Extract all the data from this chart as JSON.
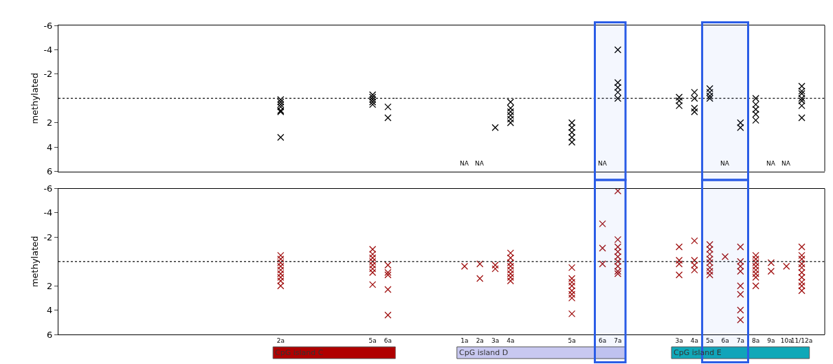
{
  "chart_data": [
    {
      "type": "scatter",
      "ylabel": "methylated",
      "ylim": [
        6,
        -6
      ],
      "yticks": [
        -6,
        -4,
        -2,
        2,
        4,
        6
      ],
      "marker": "cross",
      "tick_labels": "y",
      "categories": [
        null,
        null,
        null,
        null,
        null,
        null,
        null,
        null,
        null,
        null,
        null,
        null,
        null,
        null,
        "2a",
        null,
        null,
        null,
        null,
        null,
        "5a",
        "6a"
      ],
      "series": [
        {
          "color": "#000000",
          "x": [
            "2a",
            "2a",
            "2a",
            "2a",
            "2a",
            "2a",
            "2a",
            "5a",
            "5a",
            "5a",
            "5a",
            "5a",
            "6a",
            "6a"
          ],
          "values": [
            0.1,
            0.3,
            0.5,
            0.7,
            1.0,
            1.1,
            3.2,
            -0.3,
            -0.1,
            0.1,
            0.3,
            0.5,
            0.7,
            1.6
          ]
        }
      ],
      "ref_lines": [
        {
          "axis": "y",
          "value": 0,
          "color": "#333333",
          "line_style": "dotted"
        }
      ]
    },
    {
      "type": "scatter",
      "ylim": [
        6,
        -6
      ],
      "yticks": [
        -6,
        -4,
        -2,
        2,
        4,
        6
      ],
      "marker": "cross",
      "tick_labels": false,
      "categories": [
        null,
        null,
        null,
        null,
        "1a",
        "2a",
        "3a",
        "4a",
        null,
        null,
        null,
        "5a",
        null,
        "6a",
        "7a",
        null
      ],
      "series": [
        {
          "color": "#000000",
          "x": [
            "1a",
            "2a",
            "3a",
            "4a",
            "4a",
            "4a",
            "4a",
            "4a",
            "4a",
            "5a",
            "5a",
            "5a",
            "5a",
            "5a",
            "6a",
            "7a",
            "7a",
            "7a",
            "7a",
            "7a"
          ],
          "values": [
            null,
            null,
            2.4,
            0.3,
            0.8,
            1.1,
            1.4,
            1.7,
            2.0,
            2.0,
            2.4,
            2.8,
            3.2,
            3.6,
            null,
            -4.0,
            -1.3,
            -0.9,
            -0.5,
            0.0
          ],
          "value_labels": [
            "NA",
            "NA",
            null,
            null,
            null,
            null,
            null,
            null,
            null,
            null,
            null,
            null,
            null,
            null,
            "NA",
            null,
            null,
            null,
            null,
            null
          ]
        }
      ],
      "ref_lines": [
        {
          "axis": "y",
          "value": 0,
          "color": "#333333",
          "line_style": "dotted"
        }
      ],
      "bands": [
        {
          "axis": "x",
          "from": "6a",
          "to": "7a",
          "color": "#2a5ce6"
        }
      ]
    },
    {
      "type": "scatter",
      "ylim": [
        6,
        -6
      ],
      "yticks": [
        -6,
        -4,
        -2,
        2,
        4,
        6
      ],
      "marker": "cross",
      "tick_labels": false,
      "categories": [
        null,
        null,
        "3a",
        "4a",
        "5a",
        "6a",
        "7a",
        "8a",
        "9a",
        "10a",
        "11/12a",
        null
      ],
      "series": [
        {
          "color": "#000000",
          "x": [
            "3a",
            "3a",
            "3a",
            "4a",
            "4a",
            "4a",
            "4a",
            "5a",
            "5a",
            "5a",
            "5a",
            "6a",
            "7a",
            "7a",
            "8a",
            "8a",
            "8a",
            "8a",
            "8a",
            "9a",
            "10a",
            "11/12a",
            "11/12a",
            "11/12a",
            "11/12a",
            "11/12a",
            "11/12a",
            "11/12a"
          ],
          "values": [
            -0.1,
            0.2,
            0.6,
            -0.5,
            0.0,
            0.8,
            1.1,
            -0.8,
            -0.5,
            -0.2,
            0.0,
            null,
            2.0,
            2.4,
            0.0,
            0.5,
            0.9,
            1.3,
            1.8,
            null,
            null,
            -1.0,
            -0.6,
            -0.4,
            0.0,
            0.2,
            0.6,
            1.6
          ],
          "value_labels": [
            null,
            null,
            null,
            null,
            null,
            null,
            null,
            null,
            null,
            null,
            null,
            "NA",
            null,
            null,
            null,
            null,
            null,
            null,
            null,
            "NA",
            "NA",
            null,
            null,
            null,
            null,
            null,
            null,
            null
          ]
        }
      ],
      "ref_lines": [
        {
          "axis": "y",
          "value": 0,
          "color": "#333333",
          "line_style": "dotted"
        }
      ],
      "bands": [
        {
          "axis": "x",
          "from": "5a",
          "to": "7a",
          "color": "#2a5ce6"
        }
      ]
    },
    {
      "type": "scatter",
      "ylabel": "methylated",
      "xlabel": "CpG island C",
      "ylim": [
        6,
        -6
      ],
      "yticks": [
        -6,
        -4,
        -2,
        2,
        4,
        6
      ],
      "marker": "cross",
      "categories": [
        null,
        null,
        null,
        null,
        null,
        null,
        null,
        null,
        null,
        null,
        null,
        null,
        null,
        null,
        "2a",
        null,
        null,
        null,
        null,
        null,
        "5a",
        "6a"
      ],
      "series": [
        {
          "color": "#a01010",
          "x": [
            "2a",
            "2a",
            "2a",
            "2a",
            "2a",
            "2a",
            "2a",
            "2a",
            "2a",
            "5a",
            "5a",
            "5a",
            "5a",
            "5a",
            "5a",
            "5a",
            "5a",
            "6a",
            "6a",
            "6a",
            "6a",
            "6a"
          ],
          "values": [
            -0.5,
            -0.2,
            0.1,
            0.4,
            0.7,
            1.0,
            1.3,
            1.6,
            2.0,
            -1.0,
            -0.6,
            -0.3,
            0.0,
            0.3,
            0.6,
            0.9,
            1.9,
            0.3,
            0.9,
            1.1,
            2.3,
            4.4
          ]
        }
      ],
      "ref_lines": [
        {
          "axis": "y",
          "value": 0,
          "color": "#333333",
          "line_style": "dotted"
        }
      ]
    },
    {
      "type": "scatter",
      "xlabel": "CpG island D",
      "ylim": [
        6,
        -6
      ],
      "yticks": [
        -6,
        -4,
        -2,
        2,
        4,
        6
      ],
      "marker": "cross",
      "tick_labels": "x",
      "categories": [
        null,
        null,
        null,
        null,
        "1a",
        "2a",
        "3a",
        "4a",
        null,
        null,
        null,
        "5a",
        null,
        "6a",
        "7a",
        null
      ],
      "series": [
        {
          "color": "#a01010",
          "x": [
            "1a",
            "2a",
            "2a",
            "3a",
            "3a",
            "4a",
            "4a",
            "4a",
            "4a",
            "4a",
            "4a",
            "4a",
            "4a",
            "5a",
            "5a",
            "5a",
            "5a",
            "5a",
            "5a",
            "5a",
            "5a",
            "6a",
            "6a",
            "6a",
            "7a",
            "7a",
            "7a",
            "7a",
            "7a",
            "7a",
            "7a",
            "7a",
            "7a"
          ],
          "values": [
            0.4,
            0.2,
            1.4,
            0.3,
            0.6,
            -0.7,
            -0.3,
            0.1,
            0.4,
            0.7,
            1.0,
            1.3,
            1.6,
            0.5,
            1.4,
            1.7,
            2.0,
            2.4,
            2.7,
            3.0,
            4.3,
            -3.1,
            -1.1,
            0.2,
            -5.8,
            -1.8,
            -1.2,
            -0.8,
            -0.4,
            0.0,
            0.4,
            0.8,
            1.0
          ]
        }
      ],
      "ref_lines": [
        {
          "axis": "y",
          "value": 0,
          "color": "#333333",
          "line_style": "dotted"
        }
      ],
      "bands": [
        {
          "axis": "x",
          "from": "6a",
          "to": "7a",
          "color": "#2a5ce6"
        }
      ]
    },
    {
      "type": "scatter",
      "xlabel": "CpG island E",
      "ylim": [
        6,
        -6
      ],
      "yticks": [
        -6,
        -4,
        -2,
        2,
        4,
        6
      ],
      "marker": "cross",
      "tick_labels": "x",
      "categories": [
        null,
        null,
        "3a",
        "4a",
        "5a",
        "6a",
        "7a",
        "8a",
        "9a",
        "10a",
        "11/12a",
        null
      ],
      "series": [
        {
          "color": "#a01010",
          "x": [
            "3a",
            "3a",
            "3a",
            "3a",
            "4a",
            "4a",
            "4a",
            "4a",
            "5a",
            "5a",
            "5a",
            "5a",
            "5a",
            "5a",
            "5a",
            "5a",
            "6a",
            "7a",
            "7a",
            "7a",
            "7a",
            "7a",
            "7a",
            "7a",
            "7a",
            "8a",
            "8a",
            "8a",
            "8a",
            "8a",
            "8a",
            "8a",
            "8a",
            "9a",
            "9a",
            "10a",
            "11/12a",
            "11/12a",
            "11/12a",
            "11/12a",
            "11/12a",
            "11/12a",
            "11/12a",
            "11/12a",
            "11/12a",
            "11/12a"
          ],
          "values": [
            -1.2,
            -0.1,
            0.2,
            1.1,
            -1.7,
            -0.1,
            0.3,
            0.7,
            -1.4,
            -1.0,
            -0.6,
            -0.2,
            0.1,
            0.5,
            0.8,
            1.1,
            -0.4,
            -1.2,
            0.0,
            0.4,
            0.8,
            2.0,
            2.7,
            4.0,
            4.8,
            -0.5,
            -0.2,
            0.1,
            0.4,
            0.7,
            1.0,
            1.3,
            2.0,
            0.1,
            0.8,
            0.4,
            -1.2,
            -0.5,
            -0.2,
            0.2,
            0.5,
            0.9,
            1.3,
            1.7,
            2.0,
            2.4
          ]
        }
      ],
      "ref_lines": [
        {
          "axis": "y",
          "value": 0,
          "color": "#333333",
          "line_style": "dotted"
        }
      ],
      "bands": [
        {
          "axis": "x",
          "from": "5a",
          "to": "7a",
          "color": "#2a5ce6"
        }
      ]
    }
  ]
}
